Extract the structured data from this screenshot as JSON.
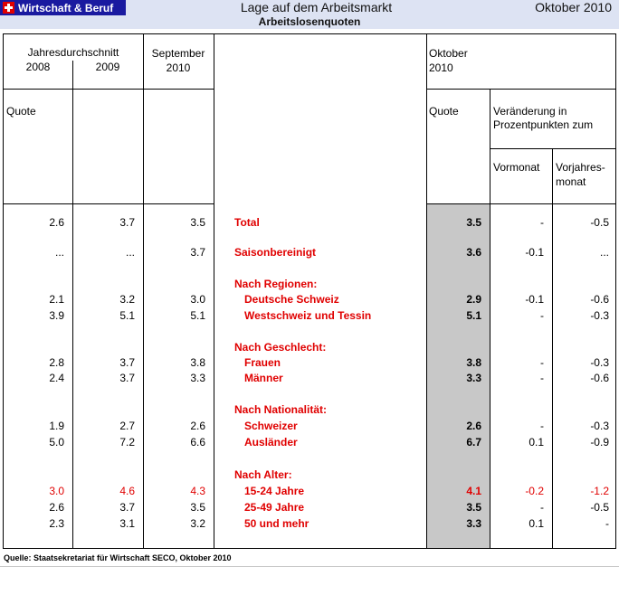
{
  "header": {
    "brand": "Wirtschaft & Beruf",
    "title": "Lage auf dem Arbeitsmarkt",
    "date": "Oktober 2010",
    "subtitle": "Arbeitslosenquoten"
  },
  "columns": {
    "avg_label": "Jahresdurchschnitt",
    "y2008": "2008",
    "y2009": "2009",
    "sep_line1": "September",
    "sep_line2": "2010",
    "oct_line1": "Oktober",
    "oct_line2": "2010",
    "quote_left": "Quote",
    "quote_right": "Quote",
    "change_line1": "Veränderung in",
    "change_line2": "Prozentpunkten zum",
    "vormonat": "Vormonat",
    "vorjahr_line1": "Vorjahres-",
    "vorjahr_line2": "monat"
  },
  "rows": [
    {
      "label": "Total",
      "indent": false,
      "v2008": "2.6",
      "v2009": "3.7",
      "sep": "3.5",
      "oct": "3.5",
      "vm": "-",
      "vj": "-0.5"
    },
    {
      "label": "Saisonbereinigt",
      "indent": false,
      "v2008": "...",
      "v2009": "...",
      "sep": "3.7",
      "oct": "3.6",
      "vm": "-0.1",
      "vj": "..."
    },
    {
      "label": "Nach Regionen:",
      "indent": false,
      "heading": true
    },
    {
      "label": "Deutsche Schweiz",
      "indent": true,
      "v2008": "2.1",
      "v2009": "3.2",
      "sep": "3.0",
      "oct": "2.9",
      "vm": "-0.1",
      "vj": "-0.6"
    },
    {
      "label": "Westschweiz und Tessin",
      "indent": true,
      "v2008": "3.9",
      "v2009": "5.1",
      "sep": "5.1",
      "oct": "5.1",
      "vm": "-",
      "vj": "-0.3"
    },
    {
      "label": "Nach Geschlecht:",
      "indent": false,
      "heading": true
    },
    {
      "label": "Frauen",
      "indent": true,
      "v2008": "2.8",
      "v2009": "3.7",
      "sep": "3.8",
      "oct": "3.8",
      "vm": "-",
      "vj": "-0.3"
    },
    {
      "label": "Männer",
      "indent": true,
      "v2008": "2.4",
      "v2009": "3.7",
      "sep": "3.3",
      "oct": "3.3",
      "vm": "-",
      "vj": "-0.6"
    },
    {
      "label": "Nach Nationalität:",
      "indent": false,
      "heading": true
    },
    {
      "label": "Schweizer",
      "indent": true,
      "v2008": "1.9",
      "v2009": "2.7",
      "sep": "2.6",
      "oct": "2.6",
      "vm": "-",
      "vj": "-0.3"
    },
    {
      "label": "Ausländer",
      "indent": true,
      "v2008": "5.0",
      "v2009": "7.2",
      "sep": "6.6",
      "oct": "6.7",
      "vm": "0.1",
      "vj": "-0.9"
    },
    {
      "label": "Nach Alter:",
      "indent": false,
      "heading": true
    },
    {
      "label": "15-24 Jahre",
      "indent": true,
      "highlight": true,
      "v2008": "3.0",
      "v2009": "4.6",
      "sep": "4.3",
      "oct": "4.1",
      "vm": "-0.2",
      "vj": "-1.2"
    },
    {
      "label": "25-49 Jahre",
      "indent": true,
      "v2008": "2.6",
      "v2009": "3.7",
      "sep": "3.5",
      "oct": "3.5",
      "vm": "-",
      "vj": "-0.5"
    },
    {
      "label": "50 und mehr",
      "indent": true,
      "v2008": "2.3",
      "v2009": "3.1",
      "sep": "3.2",
      "oct": "3.3",
      "vm": "0.1",
      "vj": "-"
    }
  ],
  "source": "Quelle: Staatsekretariat für Wirtschaft SECO, Oktober 2010"
}
